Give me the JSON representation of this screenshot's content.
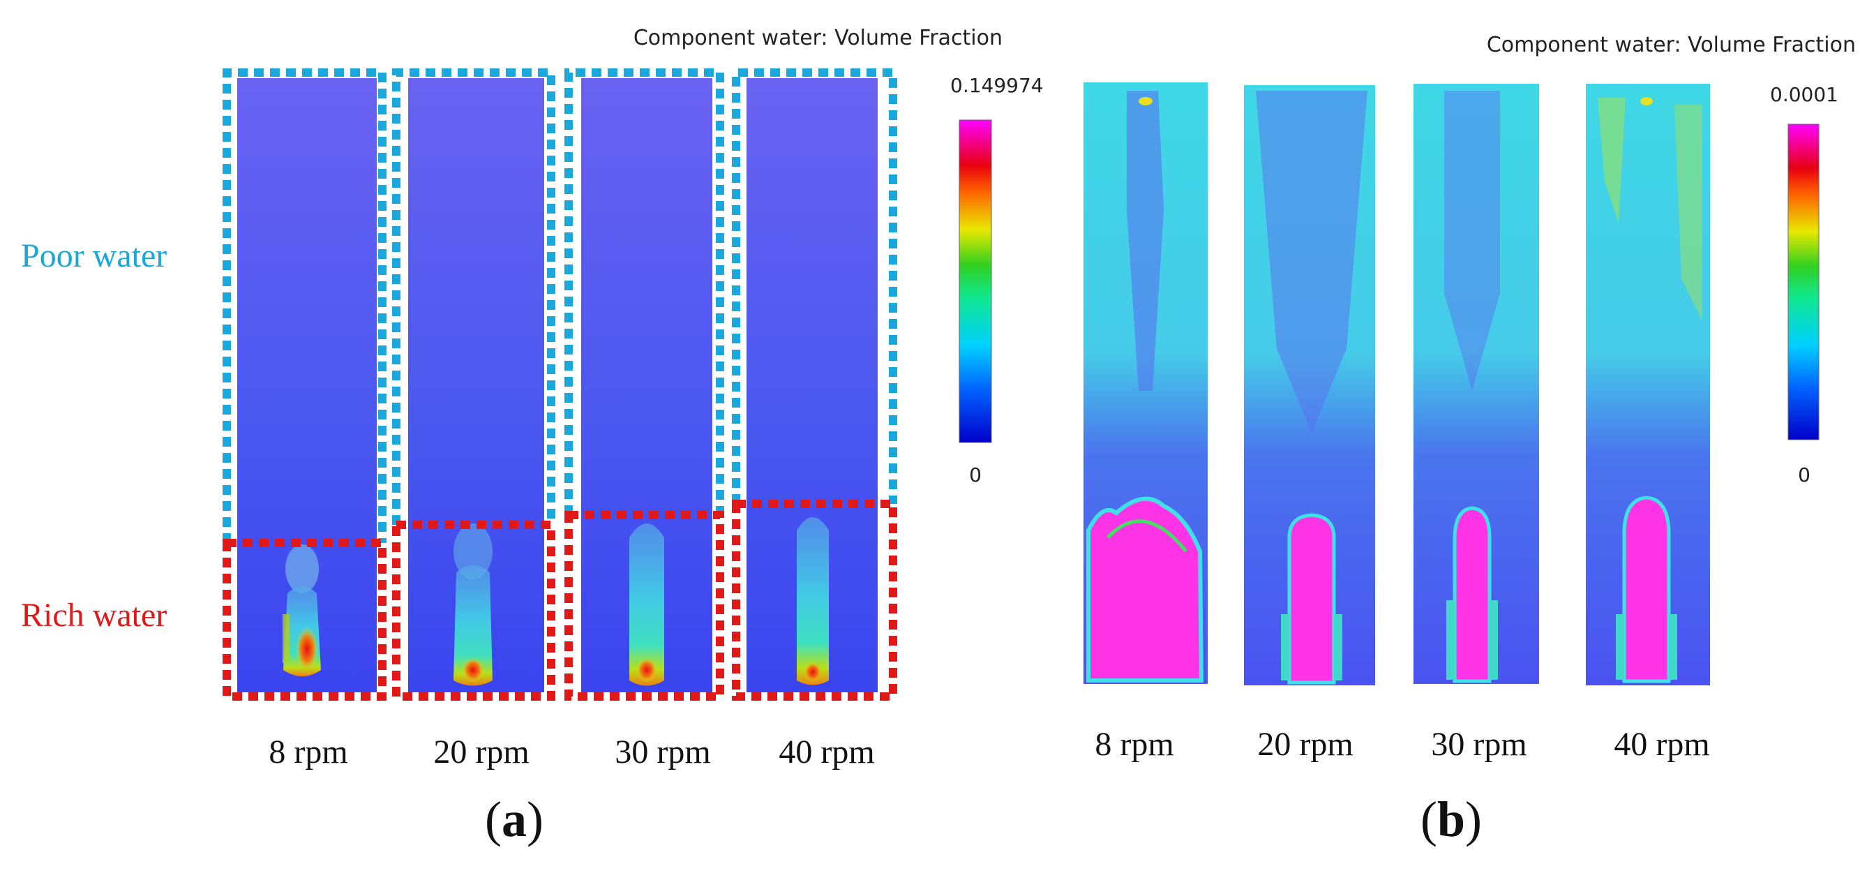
{
  "panels": [
    {
      "label_text": "a",
      "colorbar_title": "Component water: Volume Fraction",
      "colorbar_max": "0.149974",
      "colorbar_min": "0",
      "region_labels": {
        "poor": "Poor water",
        "rich": "Rich water"
      },
      "cases": [
        {
          "rpm": "8 rpm"
        },
        {
          "rpm": "20 rpm"
        },
        {
          "rpm": "30 rpm"
        },
        {
          "rpm": "40 rpm"
        }
      ]
    },
    {
      "label_text": "b",
      "colorbar_title": "Component water: Volume Fraction",
      "colorbar_max": "0.0001",
      "colorbar_min": "0",
      "cases": [
        {
          "rpm": "8 rpm"
        },
        {
          "rpm": "20 rpm"
        },
        {
          "rpm": "30 rpm"
        },
        {
          "rpm": "40 rpm"
        }
      ]
    }
  ],
  "colors": {
    "poor_water": "#1aa8dc",
    "rich_water": "#e01818",
    "domain_blue": "#4d5cf5",
    "plume_magenta": "#ff33e6",
    "cyan_field": "#3ee2e6"
  }
}
